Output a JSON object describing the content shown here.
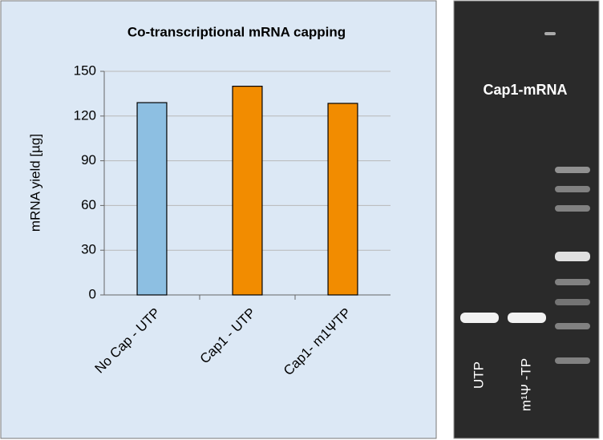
{
  "chart_data": {
    "type": "bar",
    "title": "Co-transcriptional mRNA capping",
    "y_label": "mRNA yield [µg]",
    "categories": [
      "No Cap - UTP",
      "Cap1 - UTP",
      "Cap1- m1ΨTP"
    ],
    "values": [
      129,
      140,
      128.5
    ],
    "colors": [
      "#8dbfe2",
      "#f28c00",
      "#f28c00"
    ],
    "ylim": [
      0,
      150
    ],
    "yticks": [
      0,
      30,
      60,
      90,
      120,
      150
    ],
    "grid": true
  },
  "gel": {
    "title": "Cap1-mRNA",
    "lanes": [
      "UTP",
      "m¹Ψ -TP"
    ]
  }
}
